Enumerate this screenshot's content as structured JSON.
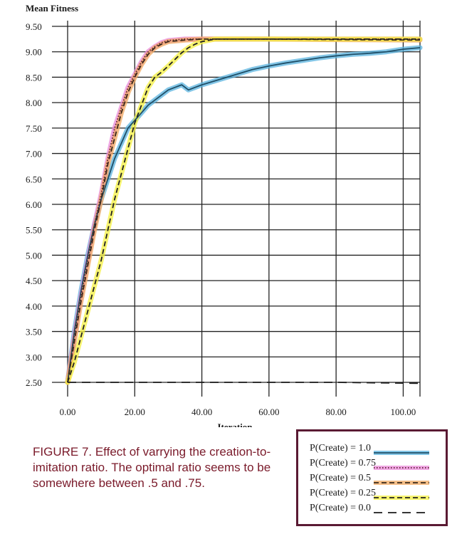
{
  "chart_data": {
    "type": "line",
    "title": "",
    "xlabel": "Iteration",
    "ylabel": "Mean Fitness",
    "xlim": [
      0,
      105
    ],
    "ylim": [
      2.5,
      9.5
    ],
    "x_ticks": [
      "0.00",
      "20.00",
      "40.00",
      "60.00",
      "80.00",
      "100.00"
    ],
    "y_ticks": [
      "2.50",
      "3.00",
      "3.50",
      "4.00",
      "4.50",
      "5.00",
      "5.50",
      "6.00",
      "6.50",
      "7.00",
      "7.50",
      "8.00",
      "8.50",
      "9.00",
      "9.50"
    ],
    "grid": true,
    "legend_position": "bottom-right",
    "series": [
      {
        "name": "P(Create) = 1.0",
        "color": "#1f4f68",
        "highlight": "#5ab3df",
        "dash": "solid",
        "points": [
          [
            0,
            2.5
          ],
          [
            2,
            3.5
          ],
          [
            4,
            4.3
          ],
          [
            6,
            5.0
          ],
          [
            8,
            5.6
          ],
          [
            10,
            6.1
          ],
          [
            12,
            6.5
          ],
          [
            14,
            6.9
          ],
          [
            16,
            7.2
          ],
          [
            18,
            7.5
          ],
          [
            20,
            7.65
          ],
          [
            22,
            7.8
          ],
          [
            24,
            7.95
          ],
          [
            26,
            8.05
          ],
          [
            28,
            8.15
          ],
          [
            30,
            8.25
          ],
          [
            32,
            8.3
          ],
          [
            34,
            8.35
          ],
          [
            36,
            8.25
          ],
          [
            38,
            8.3
          ],
          [
            40,
            8.35
          ],
          [
            45,
            8.45
          ],
          [
            50,
            8.55
          ],
          [
            55,
            8.65
          ],
          [
            60,
            8.72
          ],
          [
            65,
            8.78
          ],
          [
            70,
            8.83
          ],
          [
            75,
            8.88
          ],
          [
            80,
            8.92
          ],
          [
            85,
            8.95
          ],
          [
            90,
            8.97
          ],
          [
            95,
            9.0
          ],
          [
            100,
            9.05
          ],
          [
            105,
            9.08
          ]
        ]
      },
      {
        "name": "P(Create) = 0.75",
        "color": "#5a1a33",
        "highlight": "#e98ad8",
        "dash": "dotted",
        "points": [
          [
            0,
            2.5
          ],
          [
            2,
            3.4
          ],
          [
            4,
            4.2
          ],
          [
            6,
            4.9
          ],
          [
            8,
            5.6
          ],
          [
            10,
            6.2
          ],
          [
            12,
            6.9
          ],
          [
            14,
            7.5
          ],
          [
            16,
            7.9
          ],
          [
            18,
            8.3
          ],
          [
            20,
            8.55
          ],
          [
            22,
            8.8
          ],
          [
            24,
            9.0
          ],
          [
            26,
            9.1
          ],
          [
            28,
            9.18
          ],
          [
            30,
            9.22
          ],
          [
            35,
            9.25
          ],
          [
            40,
            9.25
          ],
          [
            60,
            9.25
          ],
          [
            80,
            9.25
          ],
          [
            105,
            9.25
          ]
        ]
      },
      {
        "name": "P(Create) = 0.5",
        "color": "#3a2a1a",
        "highlight": "#f0a860",
        "dash": "dashed",
        "points": [
          [
            0,
            2.5
          ],
          [
            2,
            3.3
          ],
          [
            4,
            4.1
          ],
          [
            6,
            4.8
          ],
          [
            8,
            5.5
          ],
          [
            10,
            6.1
          ],
          [
            12,
            6.8
          ],
          [
            14,
            7.3
          ],
          [
            16,
            7.8
          ],
          [
            18,
            8.2
          ],
          [
            20,
            8.5
          ],
          [
            22,
            8.75
          ],
          [
            24,
            8.95
          ],
          [
            26,
            9.08
          ],
          [
            28,
            9.15
          ],
          [
            30,
            9.2
          ],
          [
            35,
            9.23
          ],
          [
            40,
            9.25
          ],
          [
            60,
            9.25
          ],
          [
            80,
            9.24
          ],
          [
            105,
            9.23
          ]
        ]
      },
      {
        "name": "P(Create) = 0.25",
        "color": "#222222",
        "highlight": "#f4f040",
        "dash": "dashed",
        "points": [
          [
            0,
            2.5
          ],
          [
            2,
            2.9
          ],
          [
            4,
            3.4
          ],
          [
            6,
            3.9
          ],
          [
            8,
            4.4
          ],
          [
            10,
            4.9
          ],
          [
            12,
            5.5
          ],
          [
            14,
            6.1
          ],
          [
            16,
            6.6
          ],
          [
            18,
            7.1
          ],
          [
            20,
            7.6
          ],
          [
            22,
            7.95
          ],
          [
            24,
            8.3
          ],
          [
            26,
            8.5
          ],
          [
            28,
            8.6
          ],
          [
            30,
            8.72
          ],
          [
            32,
            8.85
          ],
          [
            34,
            8.98
          ],
          [
            36,
            9.08
          ],
          [
            38,
            9.15
          ],
          [
            40,
            9.2
          ],
          [
            44,
            9.25
          ],
          [
            50,
            9.25
          ],
          [
            60,
            9.25
          ],
          [
            80,
            9.25
          ],
          [
            105,
            9.25
          ]
        ]
      },
      {
        "name": "P(Create) = 0.0",
        "color": "#1a1a1a",
        "highlight": "",
        "dash": "longdash",
        "points": [
          [
            0,
            2.5
          ],
          [
            20,
            2.5
          ],
          [
            40,
            2.5
          ],
          [
            60,
            2.5
          ],
          [
            80,
            2.5
          ],
          [
            105,
            2.48
          ]
        ]
      }
    ],
    "annotations": []
  },
  "caption": "FIGURE 7. Effect of varrying the creation-to-imitation ratio. The optimal ratio seems to be somewhere between .5 and .75."
}
